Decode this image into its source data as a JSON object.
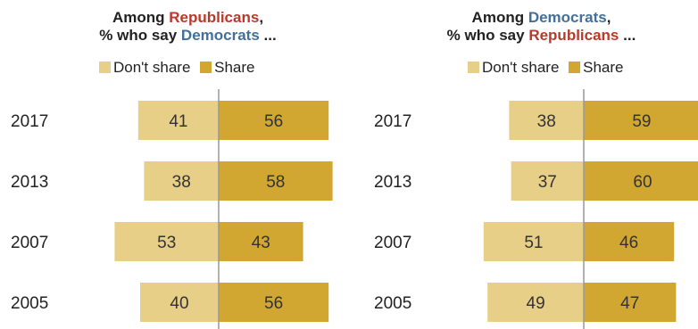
{
  "colors": {
    "dont_share": "#e8cf88",
    "share": "#d1a731",
    "democrats": "#436f9a",
    "republicans": "#b83a2b"
  },
  "chart_data": [
    {
      "type": "bar",
      "title_parts": [
        "Among ",
        "Republicans",
        ","
      ],
      "subtitle_parts": [
        "% who say ",
        "Democrats",
        " ..."
      ],
      "categories": [
        "2017",
        "2013",
        "2007",
        "2005"
      ],
      "series": [
        {
          "name": "Don't share",
          "values": [
            41,
            38,
            53,
            40
          ]
        },
        {
          "name": "Share",
          "values": [
            56,
            58,
            43,
            56
          ]
        }
      ],
      "legend": [
        "Don't share",
        "Share"
      ]
    },
    {
      "type": "bar",
      "title_parts": [
        "Among ",
        "Democrats",
        ","
      ],
      "subtitle_parts": [
        "% who say ",
        "Republicans",
        " ..."
      ],
      "categories": [
        "2017",
        "2013",
        "2007",
        "2005"
      ],
      "series": [
        {
          "name": "Don't share",
          "values": [
            38,
            37,
            51,
            49
          ]
        },
        {
          "name": "Share",
          "values": [
            59,
            60,
            46,
            47
          ]
        }
      ],
      "legend": [
        "Don't share",
        "Share"
      ]
    }
  ]
}
